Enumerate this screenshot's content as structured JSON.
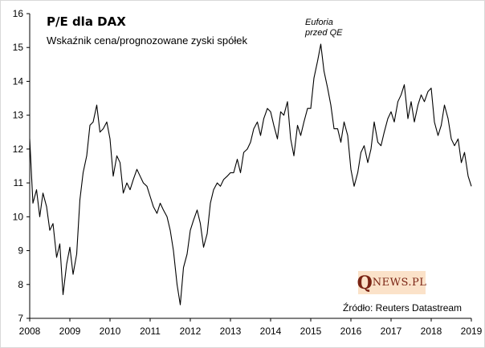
{
  "chart_data": {
    "type": "line",
    "title": "P/E dla DAX",
    "subtitle": "Wskaźnik cena/prognozowane zyski spółek",
    "xlabel": "",
    "ylabel": "",
    "xlim": [
      2008,
      2019
    ],
    "ylim": [
      7,
      16
    ],
    "x_ticks": [
      "2008",
      "2009",
      "2010",
      "2011",
      "2012",
      "2013",
      "2014",
      "2015",
      "2016",
      "2017",
      "2018",
      "2019"
    ],
    "y_ticks": [
      "7",
      "8",
      "9",
      "10",
      "11",
      "12",
      "13",
      "14",
      "15",
      "16"
    ],
    "series": [
      {
        "name": "P/E DAX",
        "color": "#000000",
        "x": [
          2008.0,
          2008.08,
          2008.17,
          2008.25,
          2008.33,
          2008.42,
          2008.5,
          2008.58,
          2008.67,
          2008.75,
          2008.83,
          2008.92,
          2009.0,
          2009.08,
          2009.17,
          2009.25,
          2009.33,
          2009.42,
          2009.5,
          2009.58,
          2009.67,
          2009.75,
          2009.83,
          2009.92,
          2010.0,
          2010.08,
          2010.17,
          2010.25,
          2010.33,
          2010.42,
          2010.5,
          2010.58,
          2010.67,
          2010.75,
          2010.83,
          2010.92,
          2011.0,
          2011.08,
          2011.17,
          2011.25,
          2011.33,
          2011.42,
          2011.5,
          2011.58,
          2011.67,
          2011.75,
          2011.83,
          2011.92,
          2012.0,
          2012.08,
          2012.17,
          2012.25,
          2012.33,
          2012.42,
          2012.5,
          2012.58,
          2012.67,
          2012.75,
          2012.83,
          2012.92,
          2013.0,
          2013.08,
          2013.17,
          2013.25,
          2013.33,
          2013.42,
          2013.5,
          2013.58,
          2013.67,
          2013.75,
          2013.83,
          2013.92,
          2014.0,
          2014.08,
          2014.17,
          2014.25,
          2014.33,
          2014.42,
          2014.5,
          2014.58,
          2014.67,
          2014.75,
          2014.83,
          2014.92,
          2015.0,
          2015.08,
          2015.17,
          2015.25,
          2015.33,
          2015.42,
          2015.5,
          2015.58,
          2015.67,
          2015.75,
          2015.83,
          2015.92,
          2016.0,
          2016.08,
          2016.17,
          2016.25,
          2016.33,
          2016.42,
          2016.5,
          2016.58,
          2016.67,
          2016.75,
          2016.83,
          2016.92,
          2017.0,
          2017.08,
          2017.17,
          2017.25,
          2017.33,
          2017.42,
          2017.5,
          2017.58,
          2017.67,
          2017.75,
          2017.83,
          2017.92,
          2018.0,
          2018.08,
          2018.17,
          2018.25,
          2018.33,
          2018.42,
          2018.5,
          2018.58,
          2018.67,
          2018.75,
          2018.83,
          2018.92,
          2019.0
        ],
        "values": [
          12.3,
          10.4,
          10.8,
          10.0,
          10.7,
          10.3,
          9.6,
          9.8,
          8.8,
          9.2,
          7.7,
          8.6,
          9.1,
          8.3,
          8.9,
          10.5,
          11.3,
          11.8,
          12.7,
          12.8,
          13.3,
          12.5,
          12.6,
          12.8,
          12.3,
          11.2,
          11.8,
          11.6,
          10.7,
          11.0,
          10.8,
          11.1,
          11.4,
          11.2,
          11.0,
          10.9,
          10.6,
          10.3,
          10.1,
          10.4,
          10.2,
          10.0,
          9.6,
          9.0,
          8.0,
          7.4,
          8.5,
          8.9,
          9.6,
          9.9,
          10.2,
          9.8,
          9.1,
          9.5,
          10.4,
          10.8,
          11.0,
          10.9,
          11.1,
          11.2,
          11.3,
          11.3,
          11.7,
          11.3,
          11.9,
          12.0,
          12.2,
          12.6,
          12.8,
          12.4,
          12.9,
          13.2,
          13.1,
          12.7,
          12.3,
          13.1,
          13.0,
          13.4,
          12.3,
          11.8,
          12.7,
          12.4,
          12.8,
          13.2,
          13.2,
          14.1,
          14.6,
          15.1,
          14.3,
          13.8,
          13.3,
          12.6,
          12.6,
          12.2,
          12.8,
          12.4,
          11.4,
          10.9,
          11.3,
          11.9,
          12.1,
          11.6,
          12.0,
          12.8,
          12.2,
          12.1,
          12.5,
          12.9,
          13.1,
          12.8,
          13.4,
          13.6,
          13.9,
          12.9,
          13.4,
          12.8,
          13.3,
          13.6,
          13.4,
          13.7,
          13.8,
          12.8,
          12.4,
          12.7,
          13.3,
          12.9,
          12.3,
          12.1,
          12.3,
          11.6,
          11.9,
          11.2,
          10.9
        ]
      }
    ]
  },
  "annotation": {
    "line1": "Euforia",
    "line2": "przed QE"
  },
  "logo": {
    "q": "Q",
    "rest": "NEWS.PL"
  },
  "source": "Źródło: Reuters Datastream"
}
